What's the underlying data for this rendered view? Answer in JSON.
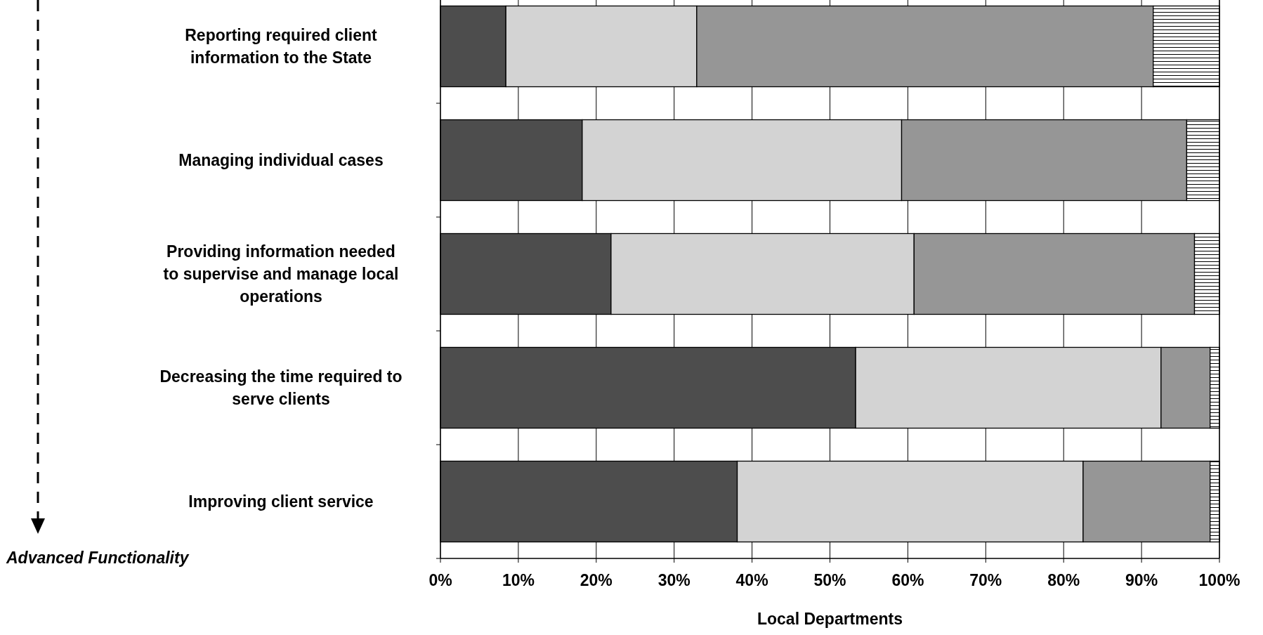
{
  "chart_data": {
    "type": "bar",
    "orientation": "horizontal",
    "stacked": true,
    "categories": [
      "Reporting required client information to the State",
      "Managing individual cases",
      "Providing information needed to supervise and manage local operations",
      "Decreasing the time required to serve clients",
      "Improving client service"
    ],
    "series": [
      {
        "color": "#4d4d4d",
        "values": [
          8.4,
          18.2,
          21.9,
          53.3,
          38.1
        ]
      },
      {
        "color": "#d3d3d3",
        "values": [
          24.5,
          41.0,
          38.9,
          39.2,
          44.4
        ]
      },
      {
        "color": "#969696",
        "values": [
          58.6,
          36.6,
          36.0,
          6.3,
          16.3
        ]
      },
      {
        "color": "#000000",
        "values": [
          8.5,
          4.2,
          3.2,
          1.2,
          1.2
        ]
      }
    ],
    "xlim": [
      0,
      100
    ],
    "xticks": [
      {
        "value": 0,
        "label": "0%"
      },
      {
        "value": 10,
        "label": "10%"
      },
      {
        "value": 20,
        "label": "20%"
      },
      {
        "value": 30,
        "label": "30%"
      },
      {
        "value": 40,
        "label": "40%"
      },
      {
        "value": 50,
        "label": "50%"
      },
      {
        "value": 60,
        "label": "60%"
      },
      {
        "value": 70,
        "label": "70%"
      },
      {
        "value": 80,
        "label": "80%"
      },
      {
        "value": 90,
        "label": "90%"
      },
      {
        "value": 100,
        "label": "100%"
      }
    ],
    "xlabel": "Local Departments",
    "grid": "x",
    "annotations": [
      "Advanced Functionality"
    ]
  }
}
